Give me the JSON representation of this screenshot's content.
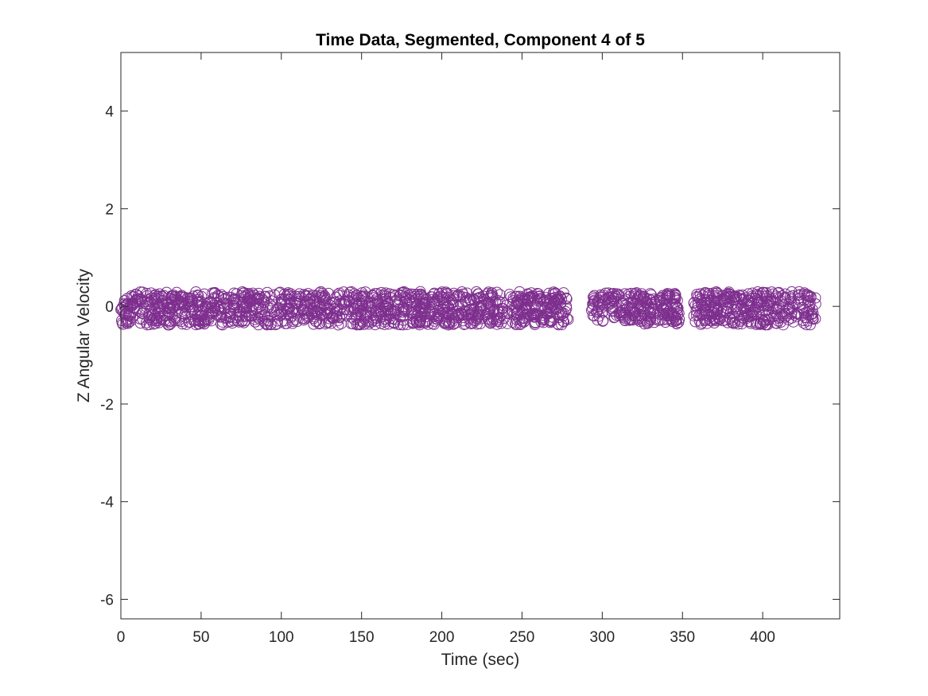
{
  "chart_data": {
    "type": "scatter",
    "title": "Time Data, Segmented, Component 4 of 5",
    "xlabel": "Time (sec)",
    "ylabel": "Z Angular Velocity",
    "xlim": [
      0,
      448
    ],
    "ylim": [
      -6.4,
      5.2
    ],
    "xticks": [
      0,
      50,
      100,
      150,
      200,
      250,
      300,
      350,
      400
    ],
    "yticks": [
      -6,
      -4,
      -2,
      0,
      2,
      4
    ],
    "grid": false,
    "marker": "open-circle",
    "color": "#7E2F8E",
    "series": [
      {
        "segments": [
          {
            "start": 0,
            "end": 279,
            "y_min": -0.38,
            "y_max": 0.3
          },
          {
            "start": 293,
            "end": 348,
            "y_min": -0.36,
            "y_max": 0.28
          },
          {
            "start": 357,
            "end": 433,
            "y_min": -0.38,
            "y_max": 0.3
          }
        ],
        "x": [
          2,
          6,
          10,
          14,
          18,
          22,
          26,
          30,
          34,
          38,
          42,
          46,
          50,
          54,
          58,
          62,
          66,
          70,
          74,
          78,
          82,
          86,
          90,
          94,
          98,
          102,
          106,
          110,
          114,
          118,
          122,
          126,
          130,
          134,
          138,
          142,
          146,
          150,
          154,
          158,
          162,
          166,
          170,
          174,
          178,
          182,
          186,
          190,
          194,
          198,
          202,
          206,
          210,
          214,
          218,
          222,
          226,
          230,
          234,
          238,
          242,
          246,
          250,
          254,
          258,
          262,
          266,
          270,
          274,
          278,
          294,
          298,
          302,
          306,
          310,
          314,
          318,
          322,
          326,
          330,
          334,
          338,
          342,
          346,
          358,
          362,
          366,
          370,
          374,
          378,
          382,
          386,
          390,
          394,
          398,
          402,
          406,
          410,
          414,
          418,
          422,
          426,
          430,
          433
        ],
        "y": [
          0.05,
          -0.2,
          0.15,
          -0.1,
          0.02,
          -0.25,
          0.12,
          -0.05,
          0.2,
          -0.15,
          0.08,
          -0.3,
          0.1,
          -0.02,
          0.18,
          -0.22,
          0.05,
          0.14,
          -0.12,
          0.22,
          -0.08,
          0.04,
          -0.18,
          0.11,
          -0.03,
          0.25,
          -0.2,
          0.07,
          -0.28,
          0.16,
          -0.1,
          0.2,
          -0.25,
          0.09,
          -0.15,
          0.23,
          -0.05,
          0.12,
          -0.3,
          0.18,
          -0.12,
          0.06,
          0.24,
          -0.22,
          0.1,
          -0.26,
          0.14,
          -0.04,
          0.19,
          -0.18,
          0.03,
          -0.28,
          0.21,
          -0.09,
          0.13,
          -0.24,
          0.02,
          0.17,
          -0.3,
          0.08,
          -0.14,
          0.2,
          -0.06,
          0.11,
          -0.22,
          0.16,
          -0.02,
          0.12,
          -0.18,
          -0.25,
          0.05,
          -0.2,
          0.15,
          -0.1,
          0.22,
          -0.28,
          0.08,
          -0.04,
          0.18,
          -0.22,
          0.12,
          -0.15,
          0.2,
          -0.3,
          0.02,
          -0.18,
          0.14,
          -0.25,
          0.1,
          -0.05,
          0.19,
          -0.28,
          0.06,
          -0.12,
          0.22,
          -0.2,
          0.11,
          -0.03,
          0.17,
          -0.24,
          0.08,
          -0.14,
          0.2,
          0.05
        ]
      }
    ]
  }
}
